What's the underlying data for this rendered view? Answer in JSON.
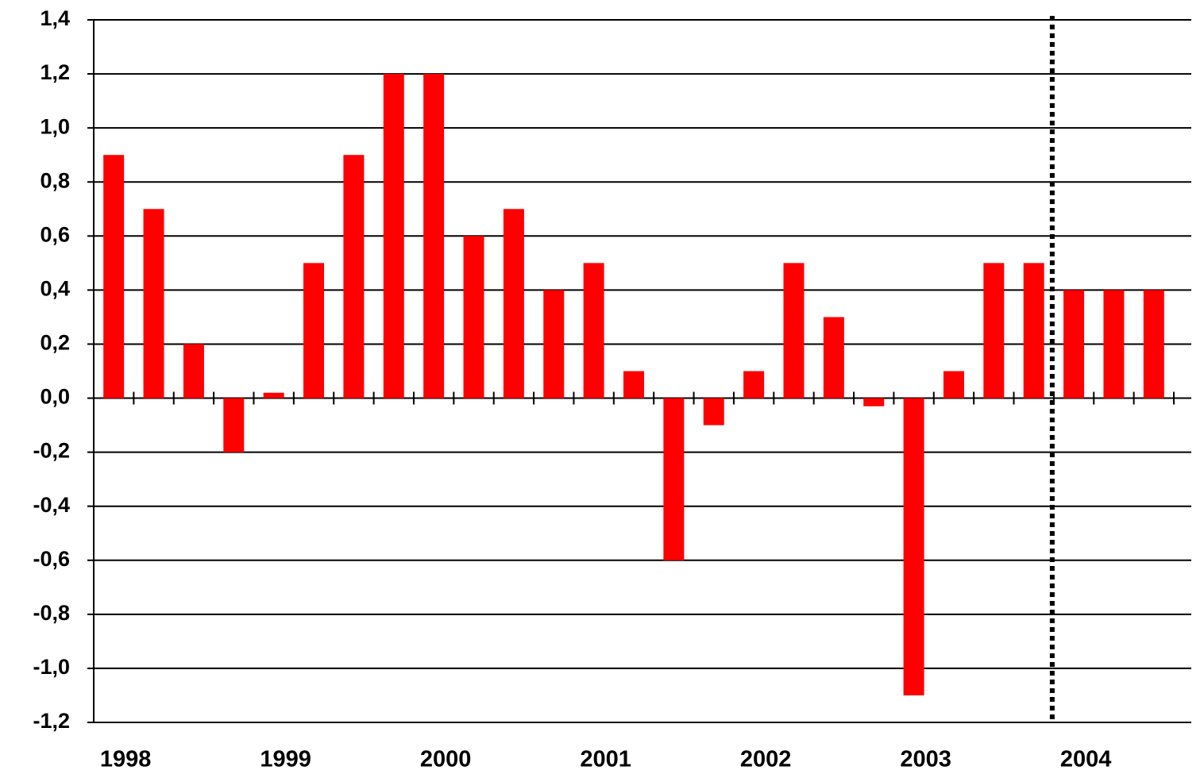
{
  "chart_data": {
    "type": "bar",
    "categories": [
      "1998",
      null,
      null,
      null,
      "1999",
      null,
      null,
      null,
      "2000",
      null,
      null,
      null,
      "2001",
      null,
      null,
      null,
      "2002",
      null,
      null,
      null,
      "2003",
      null,
      null,
      null,
      "2004",
      null,
      null
    ],
    "values": [
      0.9,
      0.7,
      0.2,
      -0.2,
      0.02,
      0.5,
      0.9,
      1.2,
      1.2,
      0.6,
      0.7,
      0.4,
      0.5,
      0.1,
      -0.6,
      -0.1,
      0.1,
      0.5,
      0.3,
      -0.03,
      -1.1,
      0.1,
      0.5,
      0.5,
      0.4,
      0.4,
      0.4
    ],
    "color": "#ff0000",
    "ylim": [
      -1.2,
      1.4
    ],
    "yticks": [
      {
        "value": -1.2,
        "label": "-1,2"
      },
      {
        "value": -1.0,
        "label": "-1,0"
      },
      {
        "value": -0.8,
        "label": "-0,8"
      },
      {
        "value": -0.6,
        "label": "-0,6"
      },
      {
        "value": -0.4,
        "label": "-0,4"
      },
      {
        "value": -0.2,
        "label": "-0,2"
      },
      {
        "value": 0,
        "label": "0,0"
      },
      {
        "value": 0.2,
        "label": "0,2"
      },
      {
        "value": 0.4,
        "label": "0,4"
      },
      {
        "value": 0.6,
        "label": "0,6"
      },
      {
        "value": 0.8,
        "label": "0,8"
      },
      {
        "value": 1.0,
        "label": "1,0"
      },
      {
        "value": 1.2,
        "label": "1,2"
      },
      {
        "value": 1.4,
        "label": "1,4"
      }
    ],
    "grid": true
  }
}
